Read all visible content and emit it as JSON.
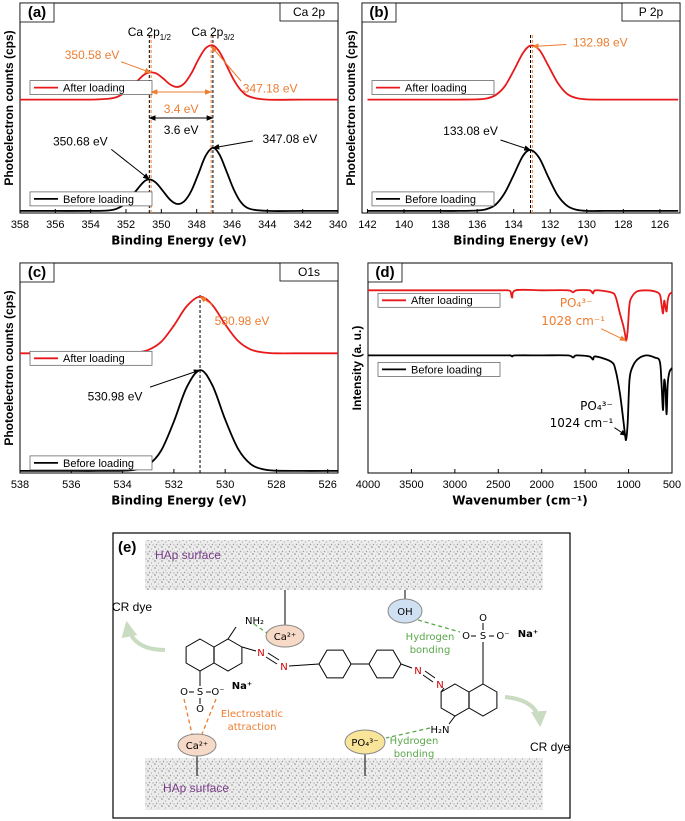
{
  "chart_data": [
    {
      "type": "line",
      "panel_label": "(a)",
      "box_label": "Ca 2p",
      "xlabel": "Binding Energy (eV)",
      "ylabel": "Photoelectron counts (cps)",
      "xlim": [
        358,
        340
      ],
      "xticks": [
        358,
        356,
        354,
        352,
        350,
        348,
        346,
        344,
        342,
        340
      ],
      "ylim": [
        0,
        100
      ],
      "peak_lines": true,
      "x": [
        358,
        356,
        354,
        353,
        352.5,
        352,
        351.5,
        351,
        350.68,
        350.3,
        349.9,
        349.5,
        349.1,
        348.7,
        348.3,
        347.9,
        347.5,
        347.08,
        346.7,
        346.3,
        345.9,
        345.5,
        345,
        344,
        342,
        340
      ],
      "series": [
        {
          "name": "After loading",
          "color": "#e8191b",
          "annotation_color": "#ed7d31",
          "values": [
            54,
            54,
            54,
            54.4,
            55.3,
            57.8,
            61.7,
            65.7,
            66.9,
            66.5,
            64.1,
            61.2,
            60,
            61.7,
            66.5,
            73.1,
            78.4,
            79.8,
            76.6,
            70.1,
            63.4,
            58.5,
            55.4,
            54,
            54,
            54
          ],
          "peaks": [
            {
              "value": 350.58,
              "label": "350.58 eV"
            },
            {
              "value": 347.18,
              "label": "347.18 eV"
            }
          ]
        },
        {
          "name": "Before loading",
          "color": "#000000",
          "values": [
            1,
            1,
            1,
            1.2,
            2.1,
            4.9,
            9.9,
            14.8,
            16,
            14.4,
            10.4,
            6.3,
            4.3,
            5.6,
            10.6,
            18.7,
            27.1,
            31,
            27.7,
            19.6,
            11.2,
            5.2,
            2,
            1,
            1,
            1
          ],
          "peaks": [
            {
              "value": 350.68,
              "label": "350.68 eV"
            },
            {
              "value": 347.08,
              "label": "347.08 eV"
            }
          ]
        }
      ],
      "separations": [
        {
          "value": 3.4,
          "label": "3.4 eV"
        },
        {
          "value": 3.6,
          "label": "3.6 eV"
        }
      ],
      "peak_names": [
        {
          "text": "Ca 2p",
          "sub": "1/2"
        },
        {
          "text": "Ca 2p",
          "sub": "3/2"
        }
      ]
    },
    {
      "type": "line",
      "panel_label": "(b)",
      "box_label": "P 2p",
      "xlabel": "Binding Energy (eV)",
      "ylabel": "Photoelectron counts (cps)",
      "xlim": [
        142.3,
        124.9
      ],
      "xticks": [
        142,
        140,
        138,
        136,
        134,
        132,
        130,
        128,
        126
      ],
      "ylim": [
        0,
        100
      ],
      "peak_lines": true,
      "x": [
        142,
        140,
        138,
        137,
        136,
        135.5,
        135,
        134.5,
        134,
        133.5,
        133.08,
        132.6,
        132.1,
        131.6,
        131.1,
        130.6,
        130,
        129,
        128,
        126,
        125
      ],
      "series": [
        {
          "name": "After loading",
          "color": "#e8191b",
          "annotation_color": "#ed7d31",
          "values": [
            54,
            54,
            54,
            54,
            54.1,
            54.5,
            56.1,
            60.2,
            67.8,
            76.1,
            79.7,
            77.7,
            70.1,
            62.1,
            56.9,
            54.8,
            54.1,
            54,
            54,
            54,
            54
          ],
          "peaks": [
            {
              "value": 132.98,
              "label": "132.98 eV"
            }
          ]
        },
        {
          "name": "Before loading",
          "color": "#000000",
          "values": [
            1,
            1,
            1,
            1,
            1.2,
            1.8,
            3.9,
            9.4,
            18.1,
            27.1,
            30,
            26.2,
            17,
            8.5,
            3.6,
            1.6,
            1,
            1,
            1,
            1,
            1
          ],
          "peaks": [
            {
              "value": 133.08,
              "label": "133.08 eV"
            }
          ]
        }
      ]
    },
    {
      "type": "line",
      "panel_label": "(c)",
      "box_label": "O1s",
      "xlabel": "Binding Energy (eV)",
      "ylabel": "Photoelectron counts (cps)",
      "xlim": [
        538,
        525.6
      ],
      "xticks": [
        538,
        536,
        534,
        532,
        530,
        528,
        526
      ],
      "ylim": [
        0,
        100
      ],
      "peak_lines": true,
      "x": [
        538,
        536,
        535,
        534,
        533.5,
        533,
        532.5,
        532,
        531.5,
        530.98,
        530.5,
        530,
        529.5,
        529,
        528.5,
        528,
        527,
        526,
        525.6
      ],
      "series": [
        {
          "name": "After loading",
          "color": "#e8191b",
          "annotation_color": "#ed7d31",
          "values": [
            57,
            57,
            57,
            57.05,
            57.3,
            58.6,
            62.4,
            70.2,
            79.4,
            84,
            80,
            70.8,
            62.9,
            58.8,
            57.4,
            57,
            57,
            57,
            57
          ],
          "peaks": [
            {
              "value": 530.98,
              "label": "530.98 eV"
            }
          ]
        },
        {
          "name": "Before loading",
          "color": "#000000",
          "values": [
            1,
            1,
            1,
            1.1,
            1.6,
            3.8,
            10.6,
            24.5,
            40.8,
            49,
            41.8,
            25.5,
            11.6,
            4.2,
            1.7,
            1.1,
            1,
            1,
            1
          ],
          "peaks": [
            {
              "value": 530.98,
              "label": "530.98 eV"
            }
          ]
        }
      ]
    },
    {
      "type": "line",
      "panel_label": "(d)",
      "xlabel": "Wavenumber (cm⁻¹)",
      "ylabel": "Intensity (a. u.)",
      "xlim": [
        4000,
        500
      ],
      "xticks": [
        4000,
        3500,
        3000,
        2500,
        2000,
        1500,
        1000,
        500
      ],
      "ylim": [
        0,
        100
      ],
      "peak_lines": false,
      "x": [
        4000,
        3600,
        3000,
        2500,
        2400,
        2360,
        2340,
        2300,
        2000,
        1700,
        1640,
        1600,
        1450,
        1410,
        1380,
        1200,
        1150,
        1100,
        1060,
        1040,
        1028,
        1010,
        990,
        960,
        900,
        800,
        700,
        640,
        620,
        603,
        590,
        575,
        562,
        550,
        530,
        500
      ],
      "series": [
        {
          "name": "After loading",
          "color": "#e8191b",
          "annotation_color": "#ed7d31",
          "values": [
            87,
            87,
            87,
            87,
            87,
            86.5,
            83.5,
            87,
            87,
            87,
            86,
            87,
            87,
            85.5,
            87,
            86,
            84,
            76,
            70,
            66,
            63,
            68,
            80,
            84,
            86.5,
            87,
            86.5,
            85,
            80,
            76,
            82,
            79,
            77,
            82,
            85,
            86
          ],
          "peaks": [
            {
              "species": "PO₄³⁻",
              "value": 1028,
              "label": "1028 cm⁻¹"
            }
          ]
        },
        {
          "name": "Before loading",
          "color": "#000000",
          "values": [
            56,
            56,
            56,
            56,
            56,
            56,
            55.5,
            56,
            56,
            56,
            55,
            56,
            55.5,
            54,
            55.5,
            53,
            49,
            38,
            25,
            18,
            16,
            24,
            44,
            50,
            54,
            56,
            55,
            53,
            42,
            30,
            44,
            40,
            28,
            42,
            48,
            50
          ],
          "peaks": [
            {
              "species": "PO₄³⁻",
              "value": 1024,
              "label": "1024 cm⁻¹"
            }
          ]
        }
      ]
    }
  ],
  "diagram": {
    "label": "(e)",
    "surface_top": "HAp surface",
    "surface_bottom": "HAp surface",
    "dye_left": "CR dye",
    "dye_right": "CR dye",
    "ca_top": "Ca²⁺",
    "oh": "OH",
    "ca_bottom": "Ca²⁺",
    "po4": "PO₄³⁻",
    "nh2": "NH₂",
    "h2n": "H₂N",
    "azo": [
      "N",
      "N",
      "N",
      "N"
    ],
    "sulfonate_left": {
      "o1": "O",
      "s": "S",
      "o2": "O⁻",
      "o3": "O",
      "na": "Na⁺"
    },
    "sulfonate_right": {
      "o1": "O",
      "s": "S",
      "o2": "O⁻",
      "o3": "O",
      "na": "Na⁺"
    },
    "hbond_top": [
      "Hydrogen",
      "bonding"
    ],
    "hbond_bottom": [
      "Hydrogen",
      "bonding"
    ],
    "electrostatic": [
      "Electrostatic",
      "attraction"
    ]
  }
}
